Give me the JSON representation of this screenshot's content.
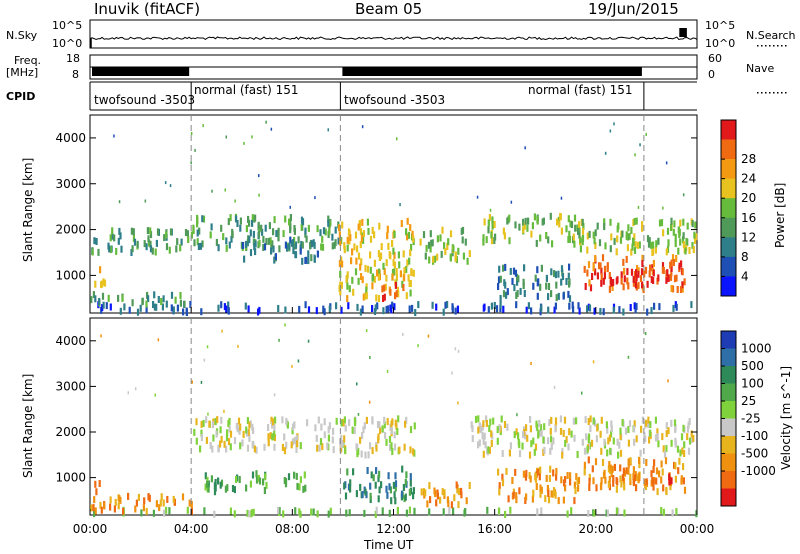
{
  "header": {
    "station": "Inuvik (fitACF)",
    "beam": "Beam 05",
    "date": "19/Jun/2015"
  },
  "top_panels": {
    "nsky_label": "N.Sky",
    "nsky_ticks": [
      "10^5",
      "10^0"
    ],
    "nsearch_label": "N.Search",
    "nsearch_ticks": [
      "10^5",
      "10^0"
    ],
    "freq_label": "Freq.",
    "freq_unit": "[MHz]",
    "freq_ticks": [
      "18",
      "8"
    ],
    "nave_label": "Nave",
    "nave_ticks": [
      "60",
      "0"
    ],
    "cpid_label": "CPID"
  },
  "cpid_segments": [
    {
      "name": "twofsound -3503",
      "start_h": 0.0,
      "end_h": 4.0
    },
    {
      "name": "normal (fast) 151",
      "start_h": 4.0,
      "end_h": 9.9
    },
    {
      "name": "twofsound -3503",
      "start_h": 9.9,
      "end_h": 21.9
    },
    {
      "name": "normal (fast) 151",
      "start_h": 21.9,
      "end_h": 24.0
    }
  ],
  "chart_data": [
    {
      "type": "heatmap",
      "name": "Power",
      "xlabel": "",
      "ylabel": "Slant Range [km]",
      "xlim": [
        0,
        24
      ],
      "ylim": [
        180,
        4500
      ],
      "yticks": [
        "1000",
        "2000",
        "3000",
        "4000"
      ],
      "colorbar_label": "Power [dB]",
      "colorbar_ticks": [
        "4",
        "8",
        "12",
        "16",
        "20",
        "24",
        "28"
      ],
      "colorbar_colors": [
        "#0a14ff",
        "#1e4fb4",
        "#2f7f8a",
        "#4f9a58",
        "#66bb3c",
        "#e8c21e",
        "#f49a12",
        "#f06a12",
        "#e2191b"
      ],
      "scatter_regions": [
        {
          "t0": 0.0,
          "t1": 24.0,
          "r0": 200,
          "r1": 380,
          "level": 1
        },
        {
          "t0": 0.0,
          "t1": 4.2,
          "r0": 380,
          "r1": 600,
          "level": 3
        },
        {
          "t0": 0.1,
          "t1": 0.6,
          "r0": 800,
          "r1": 1200,
          "level": 5
        },
        {
          "t0": 0.0,
          "t1": 4.0,
          "r0": 1500,
          "r1": 2000,
          "level": 3
        },
        {
          "t0": 4.0,
          "t1": 10.0,
          "r0": 1600,
          "r1": 2300,
          "level": 3
        },
        {
          "t0": 6.0,
          "t1": 9.0,
          "r0": 1300,
          "r1": 1800,
          "level": 2
        },
        {
          "t0": 9.8,
          "t1": 12.8,
          "r0": 500,
          "r1": 2200,
          "level": 5
        },
        {
          "t0": 11.5,
          "t1": 12.6,
          "r0": 500,
          "r1": 800,
          "level": 7
        },
        {
          "t0": 13.0,
          "t1": 15.0,
          "r0": 1300,
          "r1": 2000,
          "level": 4
        },
        {
          "t0": 15.5,
          "t1": 19.5,
          "r0": 1700,
          "r1": 2300,
          "level": 4
        },
        {
          "t0": 16.0,
          "t1": 19.0,
          "r0": 500,
          "r1": 1200,
          "level": 2
        },
        {
          "t0": 19.0,
          "t1": 24.0,
          "r0": 1500,
          "r1": 2200,
          "level": 4
        },
        {
          "t0": 19.5,
          "t1": 23.5,
          "r0": 700,
          "r1": 1400,
          "level": 7
        },
        {
          "t0": 20.0,
          "t1": 23.0,
          "r0": 800,
          "r1": 1100,
          "level": 8
        }
      ]
    },
    {
      "type": "heatmap",
      "name": "Velocity",
      "xlabel": "Time UT",
      "ylabel": "Slant Range [km]",
      "xlim": [
        0,
        24
      ],
      "ylim": [
        180,
        4500
      ],
      "yticks": [
        "1000",
        "2000",
        "3000",
        "4000"
      ],
      "xticks": [
        "00:00",
        "04:00",
        "08:00",
        "12:00",
        "16:00",
        "20:00",
        "00:00"
      ],
      "colorbar_label": "Velocity [m s^-1]",
      "colorbar_ticks": [
        "1000",
        "500",
        "100",
        "25",
        "-25",
        "-100",
        "-500",
        "-1000"
      ],
      "colorbar_colors": [
        "#1e3cb4",
        "#2f6fa8",
        "#2f8a5a",
        "#4fa84a",
        "#7fd23c",
        "#c8c8c8",
        "#e8b41e",
        "#f0900f",
        "#f06a12",
        "#e2191b"
      ],
      "scatter_regions": [
        {
          "t0": 0.0,
          "t1": 24.0,
          "r0": 200,
          "r1": 300,
          "level": 4
        },
        {
          "t0": 0.0,
          "t1": 4.0,
          "r0": 250,
          "r1": 600,
          "level": 7
        },
        {
          "t0": 0.1,
          "t1": 0.5,
          "r0": 700,
          "r1": 1000,
          "level": 8
        },
        {
          "t0": 4.0,
          "t1": 10.0,
          "r0": 1600,
          "r1": 2300,
          "level": 5
        },
        {
          "t0": 4.5,
          "t1": 8.5,
          "r0": 700,
          "r1": 1100,
          "level": 3
        },
        {
          "t0": 9.8,
          "t1": 13.0,
          "r0": 1500,
          "r1": 2300,
          "level": 5
        },
        {
          "t0": 10.0,
          "t1": 12.8,
          "r0": 500,
          "r1": 1200,
          "level": 2
        },
        {
          "t0": 13.0,
          "t1": 15.0,
          "r0": 400,
          "r1": 900,
          "level": 7
        },
        {
          "t0": 15.0,
          "t1": 24.0,
          "r0": 1500,
          "r1": 2300,
          "level": 5
        },
        {
          "t0": 16.0,
          "t1": 19.5,
          "r0": 500,
          "r1": 1200,
          "level": 7
        },
        {
          "t0": 19.5,
          "t1": 23.5,
          "r0": 700,
          "r1": 1400,
          "level": 7
        },
        {
          "t0": 20.0,
          "t1": 23.0,
          "r0": 900,
          "r1": 1200,
          "level": 8
        }
      ]
    }
  ]
}
